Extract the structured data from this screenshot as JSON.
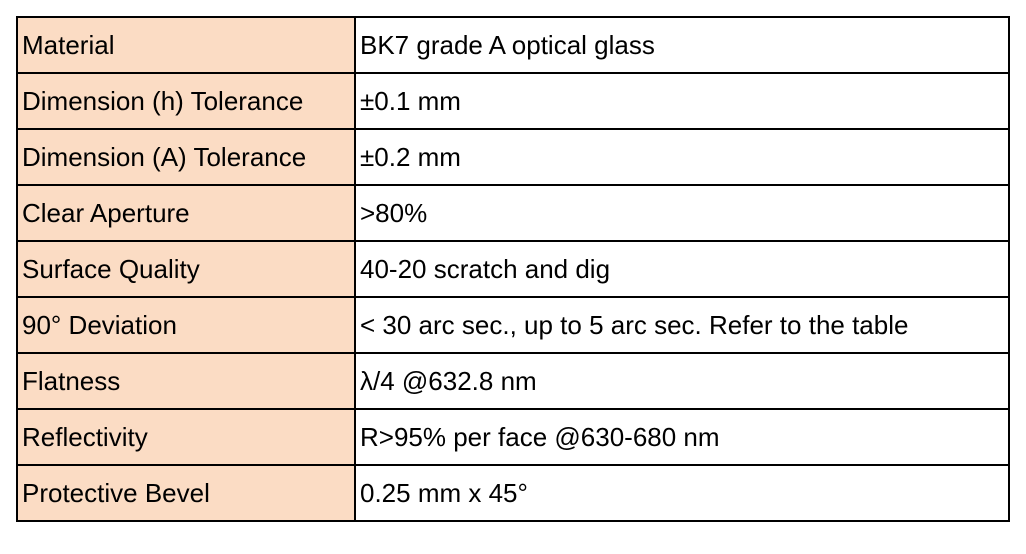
{
  "table": {
    "rows": [
      [
        "Material",
        "BK7 grade A optical glass"
      ],
      [
        "Dimension (h) Tolerance",
        "±0.1 mm"
      ],
      [
        "Dimension (A) Tolerance",
        "±0.2 mm"
      ],
      [
        "Clear Aperture",
        ">80%"
      ],
      [
        "Surface Quality",
        "40-20 scratch and dig"
      ],
      [
        "90° Deviation",
        "< 30 arc sec., up to 5 arc sec. Refer to the table"
      ],
      [
        "Flatness",
        "λ/4 @632.8 nm"
      ],
      [
        "Reflectivity",
        "R>95% per face @630-680 nm"
      ],
      [
        "Protective Bevel",
        "0.25 mm x 45°"
      ]
    ]
  }
}
